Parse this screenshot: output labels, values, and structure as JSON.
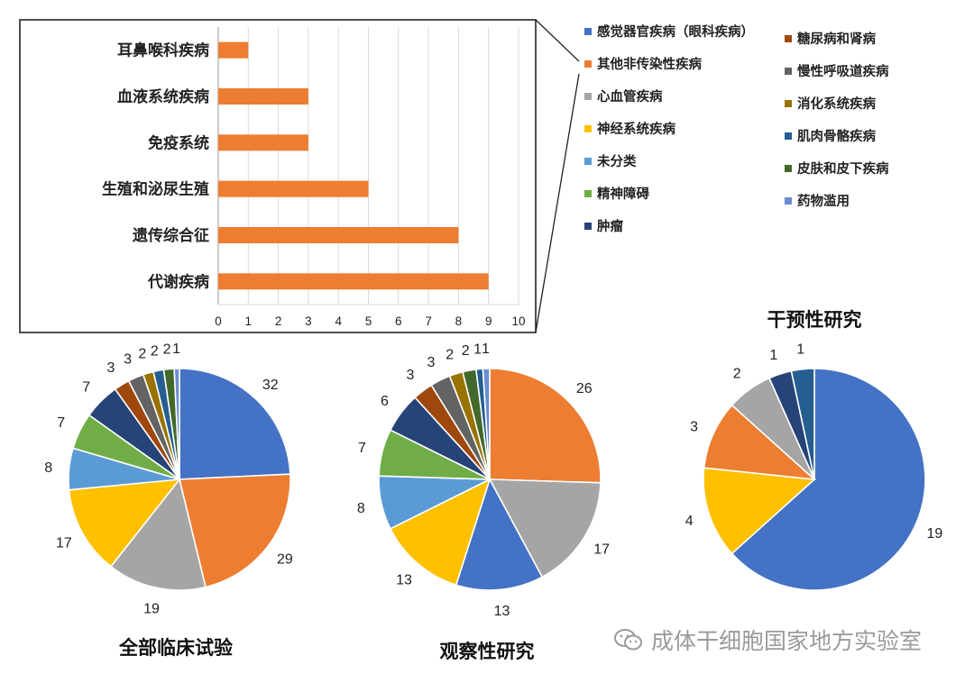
{
  "colors": {
    "blue": "#4472C4",
    "orange": "#ED7D31",
    "gray": "#A5A5A5",
    "gold": "#FFC000",
    "lightblue": "#5B9BD5",
    "green": "#70AD47",
    "navy": "#264478",
    "brown": "#9E480E",
    "darkgray": "#636363",
    "olive": "#997300",
    "steel": "#255E91",
    "darkgreen": "#43682B",
    "paleblue": "#698ED0"
  },
  "legend": [
    {
      "label": "感觉器官疾病（眼科疾病）",
      "color": "blue"
    },
    {
      "label": "其他非传染性疾病",
      "color": "orange"
    },
    {
      "label": "心血管疾病",
      "color": "gray"
    },
    {
      "label": "神经系统疾病",
      "color": "gold"
    },
    {
      "label": "未分类",
      "color": "lightblue"
    },
    {
      "label": "精神障碍",
      "color": "green"
    },
    {
      "label": "肿瘤",
      "color": "navy"
    },
    {
      "label": "糖尿病和肾病",
      "color": "brown"
    },
    {
      "label": "慢性呼吸道疾病",
      "color": "darkgray"
    },
    {
      "label": "消化系统疾病",
      "color": "olive"
    },
    {
      "label": "肌肉骨骼疾病",
      "color": "steel"
    },
    {
      "label": "皮肤和皮下疾病",
      "color": "darkgreen"
    },
    {
      "label": "药物滥用",
      "color": "paleblue"
    }
  ],
  "chart_data": [
    {
      "type": "bar",
      "orientation": "horizontal",
      "categories": [
        "耳鼻喉科疾病",
        "血液系统疾病",
        "免疫系统",
        "生殖和泌尿生殖",
        "遗传综合征",
        "代谢疾病"
      ],
      "values": [
        1,
        3,
        3,
        5,
        8,
        9
      ],
      "x_ticks": [
        "0",
        "1",
        "2",
        "3",
        "4",
        "5",
        "6",
        "7",
        "8",
        "9",
        "10"
      ],
      "xlim": [
        0,
        10
      ],
      "grid": true,
      "color": "orange"
    },
    {
      "type": "pie",
      "title": "全部临床试验",
      "labels": [
        "32",
        "29",
        "19",
        "17",
        "8",
        "7",
        "7",
        "3",
        "3",
        "2",
        "2",
        "2",
        "1"
      ],
      "values": [
        32,
        29,
        19,
        17,
        8,
        7,
        7,
        3,
        3,
        2,
        2,
        2,
        1
      ],
      "colors": [
        "blue",
        "orange",
        "gray",
        "gold",
        "lightblue",
        "green",
        "navy",
        "brown",
        "darkgray",
        "olive",
        "steel",
        "darkgreen",
        "paleblue"
      ]
    },
    {
      "type": "pie",
      "title": "观察性研究",
      "labels": [
        "26",
        "17",
        "13",
        "13",
        "8",
        "7",
        "6",
        "3",
        "3",
        "2",
        "2",
        "1",
        "1"
      ],
      "values": [
        26,
        17,
        13,
        13,
        8,
        7,
        6,
        3,
        3,
        2,
        2,
        1,
        1
      ],
      "colors": [
        "orange",
        "gray",
        "blue",
        "gold",
        "lightblue",
        "green",
        "navy",
        "brown",
        "darkgray",
        "olive",
        "darkgreen",
        "steel",
        "paleblue"
      ]
    },
    {
      "type": "pie",
      "title": "干预性研究",
      "labels": [
        "19",
        "4",
        "3",
        "2",
        "1",
        "1"
      ],
      "values": [
        19,
        4,
        3,
        2,
        1,
        1
      ],
      "colors": [
        "blue",
        "gold",
        "orange",
        "gray",
        "navy",
        "steel"
      ]
    }
  ],
  "watermark": "成体干细胞国家地方实验室"
}
